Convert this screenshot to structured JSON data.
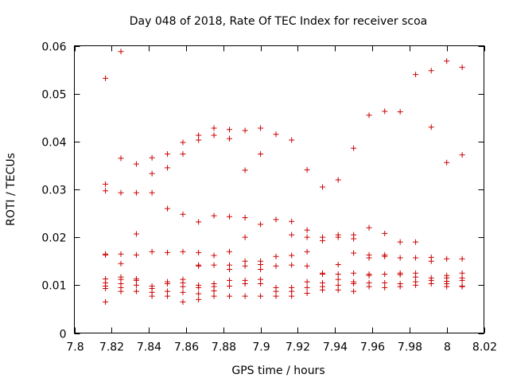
{
  "chart_data": {
    "type": "scatter",
    "title": "Day 048 of 2018, Rate Of TEC Index for receiver scoa",
    "xlabel": "GPS time / hours",
    "ylabel": "ROTI / TECUs",
    "xlim": [
      7.8,
      8.02
    ],
    "ylim": [
      0,
      0.06
    ],
    "xticks": [
      7.8,
      7.82,
      7.84,
      7.86,
      7.88,
      7.9,
      7.92,
      7.94,
      7.96,
      7.98,
      8,
      8.02
    ],
    "xtick_labels": [
      "7.8",
      "7.82",
      "7.84",
      "7.86",
      "7.88",
      "7.9",
      "7.92",
      "7.94",
      "7.96",
      "7.98",
      "8",
      "8.02"
    ],
    "yticks": [
      0,
      0.01,
      0.02,
      0.03,
      0.04,
      0.05,
      0.06
    ],
    "ytick_labels": [
      "0",
      "0.01",
      "0.02",
      "0.03",
      "0.04",
      "0.05",
      "0.06"
    ],
    "grid": false,
    "marker": "+",
    "color": "#cc0000",
    "series": [
      {
        "name": "ROTI",
        "points": [
          [
            7.8167,
            0.0532
          ],
          [
            7.8167,
            0.0311
          ],
          [
            7.8167,
            0.0297
          ],
          [
            7.8167,
            0.0165
          ],
          [
            7.8167,
            0.0163
          ],
          [
            7.8167,
            0.0113
          ],
          [
            7.8167,
            0.0105
          ],
          [
            7.8167,
            0.0098
          ],
          [
            7.8167,
            0.0093
          ],
          [
            7.8167,
            0.0065
          ],
          [
            7.825,
            0.0588
          ],
          [
            7.825,
            0.0365
          ],
          [
            7.825,
            0.0293
          ],
          [
            7.825,
            0.0165
          ],
          [
            7.825,
            0.0145
          ],
          [
            7.825,
            0.0117
          ],
          [
            7.825,
            0.0112
          ],
          [
            7.825,
            0.0103
          ],
          [
            7.825,
            0.0095
          ],
          [
            7.825,
            0.0087
          ],
          [
            7.8333,
            0.0353
          ],
          [
            7.8333,
            0.0293
          ],
          [
            7.8333,
            0.0207
          ],
          [
            7.8333,
            0.0163
          ],
          [
            7.8333,
            0.0113
          ],
          [
            7.8333,
            0.011
          ],
          [
            7.8333,
            0.01
          ],
          [
            7.8333,
            0.0087
          ],
          [
            7.8417,
            0.0366
          ],
          [
            7.8417,
            0.0333
          ],
          [
            7.8417,
            0.0293
          ],
          [
            7.8417,
            0.017
          ],
          [
            7.8417,
            0.0098
          ],
          [
            7.8417,
            0.0093
          ],
          [
            7.8417,
            0.0085
          ],
          [
            7.8417,
            0.0077
          ],
          [
            7.85,
            0.0374
          ],
          [
            7.85,
            0.0345
          ],
          [
            7.85,
            0.026
          ],
          [
            7.85,
            0.0168
          ],
          [
            7.85,
            0.0107
          ],
          [
            7.85,
            0.0103
          ],
          [
            7.85,
            0.0087
          ],
          [
            7.85,
            0.0077
          ],
          [
            7.8583,
            0.0398
          ],
          [
            7.8583,
            0.0374
          ],
          [
            7.8583,
            0.0248
          ],
          [
            7.8583,
            0.017
          ],
          [
            7.8583,
            0.0112
          ],
          [
            7.8583,
            0.0105
          ],
          [
            7.8583,
            0.0097
          ],
          [
            7.8583,
            0.0085
          ],
          [
            7.8583,
            0.0065
          ],
          [
            7.8667,
            0.0413
          ],
          [
            7.8667,
            0.0403
          ],
          [
            7.8667,
            0.0232
          ],
          [
            7.8667,
            0.0168
          ],
          [
            7.8667,
            0.0142
          ],
          [
            7.8667,
            0.014
          ],
          [
            7.8667,
            0.01
          ],
          [
            7.8667,
            0.0095
          ],
          [
            7.8667,
            0.0082
          ],
          [
            7.8667,
            0.007
          ],
          [
            7.875,
            0.0428
          ],
          [
            7.875,
            0.0413
          ],
          [
            7.875,
            0.0245
          ],
          [
            7.875,
            0.0162
          ],
          [
            7.875,
            0.0142
          ],
          [
            7.875,
            0.0103
          ],
          [
            7.875,
            0.0097
          ],
          [
            7.875,
            0.0088
          ],
          [
            7.875,
            0.0077
          ],
          [
            7.8833,
            0.0425
          ],
          [
            7.8833,
            0.0406
          ],
          [
            7.8833,
            0.0243
          ],
          [
            7.8833,
            0.017
          ],
          [
            7.8833,
            0.0142
          ],
          [
            7.8833,
            0.0133
          ],
          [
            7.8833,
            0.011
          ],
          [
            7.8833,
            0.0098
          ],
          [
            7.8833,
            0.0077
          ],
          [
            7.8917,
            0.0423
          ],
          [
            7.8917,
            0.034
          ],
          [
            7.8917,
            0.0241
          ],
          [
            7.8917,
            0.02
          ],
          [
            7.8917,
            0.015
          ],
          [
            7.8917,
            0.014
          ],
          [
            7.8917,
            0.011
          ],
          [
            7.8917,
            0.0103
          ],
          [
            7.8917,
            0.0077
          ],
          [
            7.9,
            0.0428
          ],
          [
            7.9,
            0.0374
          ],
          [
            7.9,
            0.0227
          ],
          [
            7.9,
            0.015
          ],
          [
            7.9,
            0.0143
          ],
          [
            7.9,
            0.0133
          ],
          [
            7.9,
            0.0112
          ],
          [
            7.9,
            0.0103
          ],
          [
            7.9,
            0.0077
          ],
          [
            7.9083,
            0.0415
          ],
          [
            7.9083,
            0.0237
          ],
          [
            7.9083,
            0.016
          ],
          [
            7.9083,
            0.014
          ],
          [
            7.9083,
            0.0095
          ],
          [
            7.9083,
            0.0087
          ],
          [
            7.9083,
            0.0077
          ],
          [
            7.9167,
            0.0403
          ],
          [
            7.9167,
            0.0233
          ],
          [
            7.9167,
            0.0205
          ],
          [
            7.9167,
            0.0162
          ],
          [
            7.9167,
            0.0142
          ],
          [
            7.9167,
            0.0095
          ],
          [
            7.9167,
            0.0087
          ],
          [
            7.9167,
            0.0077
          ],
          [
            7.925,
            0.0341
          ],
          [
            7.925,
            0.0215
          ],
          [
            7.925,
            0.02
          ],
          [
            7.925,
            0.017
          ],
          [
            7.925,
            0.014
          ],
          [
            7.925,
            0.0107
          ],
          [
            7.925,
            0.0095
          ],
          [
            7.925,
            0.0083
          ],
          [
            7.9333,
            0.0305
          ],
          [
            7.9333,
            0.02
          ],
          [
            7.9333,
            0.0193
          ],
          [
            7.9333,
            0.0125
          ],
          [
            7.9333,
            0.0123
          ],
          [
            7.9333,
            0.0105
          ],
          [
            7.9333,
            0.0097
          ],
          [
            7.9333,
            0.009
          ],
          [
            7.9417,
            0.032
          ],
          [
            7.9417,
            0.0205
          ],
          [
            7.9417,
            0.02
          ],
          [
            7.9417,
            0.0143
          ],
          [
            7.9417,
            0.0123
          ],
          [
            7.9417,
            0.0112
          ],
          [
            7.9417,
            0.01
          ],
          [
            7.9417,
            0.009
          ],
          [
            7.95,
            0.0386
          ],
          [
            7.95,
            0.0205
          ],
          [
            7.95,
            0.0197
          ],
          [
            7.95,
            0.0167
          ],
          [
            7.95,
            0.0125
          ],
          [
            7.95,
            0.0107
          ],
          [
            7.95,
            0.0103
          ],
          [
            7.95,
            0.0087
          ],
          [
            7.9583,
            0.0455
          ],
          [
            7.9583,
            0.022
          ],
          [
            7.9583,
            0.0163
          ],
          [
            7.9583,
            0.0157
          ],
          [
            7.9583,
            0.0123
          ],
          [
            7.9583,
            0.012
          ],
          [
            7.9583,
            0.0105
          ],
          [
            7.9583,
            0.0097
          ],
          [
            7.9667,
            0.0463
          ],
          [
            7.9667,
            0.0208
          ],
          [
            7.9667,
            0.0163
          ],
          [
            7.9667,
            0.016
          ],
          [
            7.9667,
            0.0123
          ],
          [
            7.9667,
            0.0105
          ],
          [
            7.9667,
            0.0095
          ],
          [
            7.975,
            0.0462
          ],
          [
            7.975,
            0.019
          ],
          [
            7.975,
            0.0157
          ],
          [
            7.975,
            0.0125
          ],
          [
            7.975,
            0.0122
          ],
          [
            7.975,
            0.0103
          ],
          [
            7.975,
            0.0097
          ],
          [
            7.9833,
            0.054
          ],
          [
            7.9833,
            0.019
          ],
          [
            7.9833,
            0.0157
          ],
          [
            7.9833,
            0.0125
          ],
          [
            7.9833,
            0.0117
          ],
          [
            7.9833,
            0.0107
          ],
          [
            7.9833,
            0.01
          ],
          [
            7.9917,
            0.0548
          ],
          [
            7.9917,
            0.043
          ],
          [
            7.9917,
            0.0158
          ],
          [
            7.9917,
            0.015
          ],
          [
            7.9917,
            0.0115
          ],
          [
            7.9917,
            0.011
          ],
          [
            7.9917,
            0.0103
          ],
          [
            8.0,
            0.0568
          ],
          [
            8.0,
            0.0356
          ],
          [
            8.0,
            0.0155
          ],
          [
            8.0,
            0.012
          ],
          [
            8.0,
            0.0115
          ],
          [
            8.0,
            0.0108
          ],
          [
            8.0,
            0.0103
          ],
          [
            8.0,
            0.0097
          ],
          [
            8.0083,
            0.0555
          ],
          [
            8.0083,
            0.0372
          ],
          [
            8.0083,
            0.0155
          ],
          [
            8.0083,
            0.0125
          ],
          [
            8.0083,
            0.0115
          ],
          [
            8.0083,
            0.011
          ],
          [
            8.0083,
            0.0098
          ],
          [
            8.0083,
            0.0097
          ]
        ]
      }
    ]
  }
}
